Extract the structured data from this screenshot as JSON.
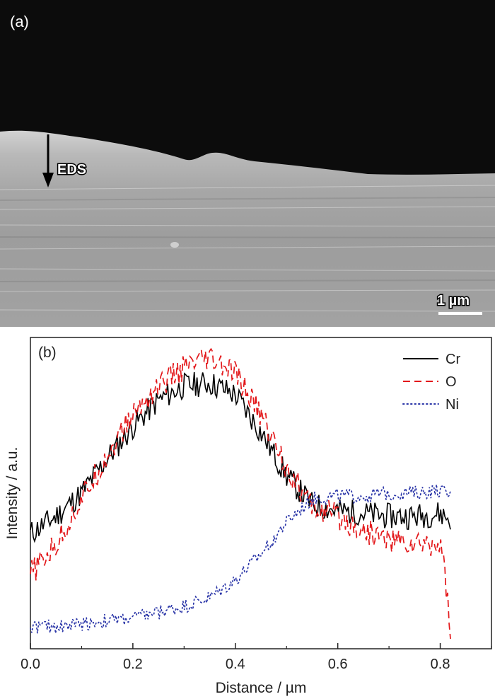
{
  "panel_a": {
    "label": "(a)",
    "eds_label": "EDS",
    "scale_bar_label": "1 µm"
  },
  "panel_b": {
    "label": "(b)"
  },
  "colors": {
    "Cr": "#000000",
    "O": "#e3181b",
    "Ni": "#2b36a8"
  },
  "chart_data": {
    "type": "line",
    "xlabel": "Distance / µm",
    "ylabel": "Intensity / a.u.",
    "xlim": [
      0.0,
      0.9
    ],
    "ylim": [
      0,
      1
    ],
    "xticks": [
      "0.0",
      "0.2",
      "0.4",
      "0.6",
      "0.8"
    ],
    "xtick_values": [
      0.0,
      0.2,
      0.4,
      0.6,
      0.8
    ],
    "legend_position": "top-right",
    "series": [
      {
        "name": "Cr",
        "style": "solid",
        "x": [
          0.0,
          0.05,
          0.1,
          0.15,
          0.2,
          0.25,
          0.3,
          0.35,
          0.4,
          0.45,
          0.5,
          0.55,
          0.6,
          0.65,
          0.7,
          0.75,
          0.8,
          0.82
        ],
        "y": [
          0.36,
          0.42,
          0.5,
          0.62,
          0.73,
          0.82,
          0.87,
          0.88,
          0.84,
          0.71,
          0.56,
          0.46,
          0.44,
          0.43,
          0.42,
          0.42,
          0.43,
          0.41
        ]
      },
      {
        "name": "O",
        "style": "dashed",
        "x": [
          0.0,
          0.05,
          0.1,
          0.15,
          0.2,
          0.25,
          0.3,
          0.35,
          0.4,
          0.45,
          0.5,
          0.55,
          0.6,
          0.65,
          0.7,
          0.75,
          0.8,
          0.81,
          0.82
        ],
        "y": [
          0.22,
          0.32,
          0.48,
          0.63,
          0.77,
          0.87,
          0.93,
          0.96,
          0.91,
          0.77,
          0.59,
          0.45,
          0.42,
          0.37,
          0.34,
          0.32,
          0.33,
          0.22,
          0.0
        ]
      },
      {
        "name": "Ni",
        "style": "dotted",
        "x": [
          0.0,
          0.05,
          0.1,
          0.15,
          0.2,
          0.25,
          0.3,
          0.35,
          0.4,
          0.45,
          0.5,
          0.55,
          0.6,
          0.65,
          0.7,
          0.75,
          0.8,
          0.82
        ],
        "y": [
          0.04,
          0.04,
          0.05,
          0.06,
          0.07,
          0.09,
          0.11,
          0.14,
          0.2,
          0.29,
          0.4,
          0.48,
          0.49,
          0.49,
          0.5,
          0.5,
          0.51,
          0.49
        ]
      }
    ]
  }
}
